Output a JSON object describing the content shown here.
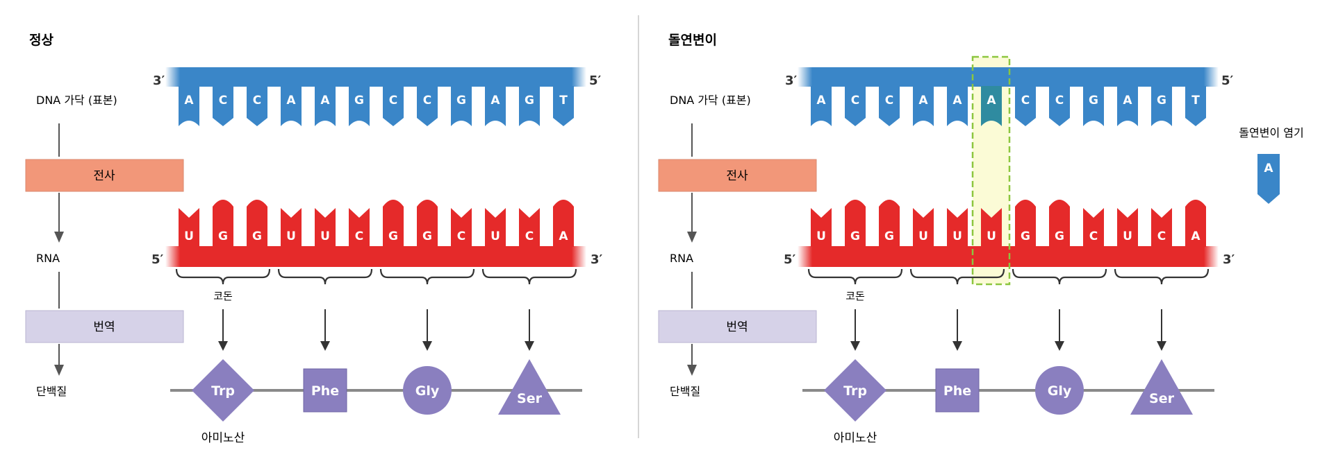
{
  "panels": [
    {
      "id": "normal",
      "title": "정상",
      "dna_label": "DNA 가닥 (표본)",
      "dna_bases": [
        "A",
        "C",
        "C",
        "A",
        "A",
        "G",
        "C",
        "C",
        "G",
        "A",
        "G",
        "T"
      ],
      "dna_end_left": "3′",
      "dna_end_right": "5′",
      "transcription_label": "전사",
      "rna_label": "RNA",
      "rna_bases": [
        "U",
        "G",
        "G",
        "U",
        "U",
        "C",
        "G",
        "G",
        "C",
        "U",
        "C",
        "A"
      ],
      "rna_end_left": "5′",
      "rna_end_right": "3′",
      "codon_label": "코돈",
      "translation_label": "번역",
      "protein_label": "단백질",
      "amino_acids": [
        {
          "name": "Trp",
          "shape": "diamond"
        },
        {
          "name": "Phe",
          "shape": "square"
        },
        {
          "name": "Gly",
          "shape": "circle"
        },
        {
          "name": "Ser",
          "shape": "triangle"
        }
      ],
      "amino_acid_label": "아미노산"
    },
    {
      "id": "mutant",
      "title": "돌연변이",
      "dna_label": "DNA 가닥 (표본)",
      "dna_bases": [
        "A",
        "C",
        "C",
        "A",
        "A",
        "A",
        "C",
        "C",
        "G",
        "A",
        "G",
        "T"
      ],
      "dna_end_left": "3′",
      "dna_end_right": "5′",
      "transcription_label": "전사",
      "rna_label": "RNA",
      "rna_bases": [
        "U",
        "G",
        "G",
        "U",
        "U",
        "U",
        "G",
        "G",
        "C",
        "U",
        "C",
        "A"
      ],
      "rna_end_left": "5′",
      "rna_end_right": "3′",
      "codon_label": "코돈",
      "translation_label": "번역",
      "protein_label": "단백질",
      "amino_acids": [
        {
          "name": "Trp",
          "shape": "diamond"
        },
        {
          "name": "Phe",
          "shape": "square"
        },
        {
          "name": "Gly",
          "shape": "circle"
        },
        {
          "name": "Ser",
          "shape": "triangle"
        }
      ],
      "amino_acid_label": "아미노산",
      "mutation_index": 5,
      "mutant_base_label": "돌연변이 염기",
      "mutant_base": "A"
    }
  ],
  "colors": {
    "dna": "#3a86c8",
    "rna": "#e52a2a",
    "transcription_box": "#f29779",
    "translation_box": "#d6d2e8",
    "amino_acid": "#8a7fbf",
    "highlight_border": "#8cc63f",
    "highlight_fill": "#fbfbd6"
  }
}
